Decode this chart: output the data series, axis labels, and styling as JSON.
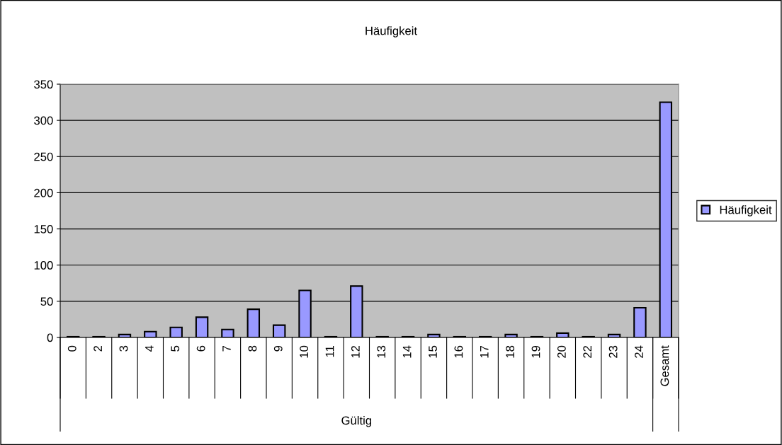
{
  "chart_data": {
    "type": "bar",
    "title": "Häufigkeit",
    "xlabel": "Gültig",
    "categories": [
      "0",
      "2",
      "3",
      "4",
      "5",
      "6",
      "7",
      "8",
      "9",
      "10",
      "11",
      "12",
      "13",
      "14",
      "15",
      "16",
      "17",
      "18",
      "19",
      "20",
      "22",
      "23",
      "24",
      "Gesamt"
    ],
    "series": [
      {
        "name": "Häufigkeit",
        "color": "#9999ff",
        "values": [
          1,
          1,
          4,
          8,
          14,
          28,
          11,
          39,
          17,
          65,
          1,
          71,
          1,
          1,
          4,
          1,
          1,
          4,
          1,
          6,
          1,
          4,
          41,
          325
        ]
      }
    ],
    "ylim": [
      0,
      350
    ],
    "yticks": [
      0,
      50,
      100,
      150,
      200,
      250,
      300,
      350
    ],
    "grid": "y",
    "legend": "right"
  }
}
